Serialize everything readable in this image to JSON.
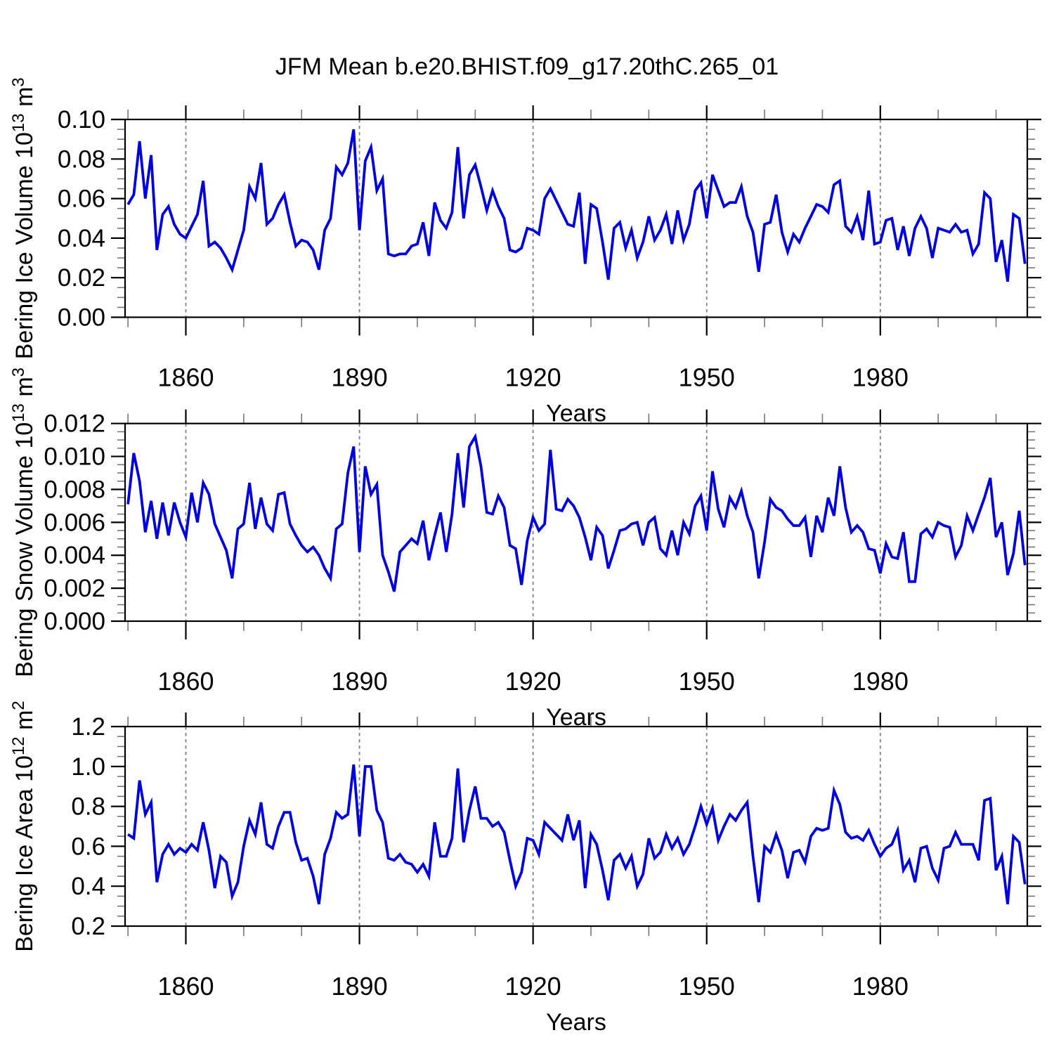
{
  "figure": {
    "title": "JFM Mean b.e20.BHIST.f09_g17.20thC.265_01",
    "background": "#ffffff",
    "line_color": "#0000dd",
    "grid_color": "#808080",
    "axis_color": "#000000",
    "minor_tick_color": "#777777",
    "text_color": "#000000"
  },
  "chart_data": [
    {
      "type": "line",
      "id": "bering-ice-volume",
      "ylabel_segments": [
        {
          "t": "Bering Ice Volume 10"
        },
        {
          "t": "13",
          "sup": true
        },
        {
          "t": " m"
        },
        {
          "t": "3",
          "sup": true
        }
      ],
      "xlabel": "Years",
      "x": {
        "start": 1850,
        "end": 2005,
        "step": 1
      },
      "xlim": [
        1849.5,
        2005.4
      ],
      "ylim": [
        0.0,
        0.1
      ],
      "yticks": [
        0.0,
        0.02,
        0.04,
        0.06,
        0.08,
        0.1
      ],
      "ytick_labels": [
        "0.00",
        "0.02",
        "0.04",
        "0.06",
        "0.08",
        "0.10"
      ],
      "yminor_step": 0.005,
      "xticks": [
        1860,
        1890,
        1920,
        1950,
        1980
      ],
      "xtick_labels": [
        "1860",
        "1890",
        "1920",
        "1950",
        "1980"
      ],
      "xminor_ticks": [
        1850,
        1870,
        1880,
        1900,
        1910,
        1930,
        1940,
        1960,
        1970,
        1990,
        2000
      ],
      "grid_x": [
        1860,
        1890,
        1920,
        1950,
        1980
      ],
      "grid_on": true,
      "legend": "none",
      "values": [
        0.057,
        0.062,
        0.089,
        0.06,
        0.082,
        0.034,
        0.052,
        0.056,
        0.047,
        0.042,
        0.04,
        0.046,
        0.052,
        0.069,
        0.036,
        0.038,
        0.035,
        0.03,
        0.024,
        0.034,
        0.044,
        0.066,
        0.06,
        0.078,
        0.047,
        0.05,
        0.057,
        0.062,
        0.048,
        0.036,
        0.039,
        0.038,
        0.034,
        0.024,
        0.044,
        0.05,
        0.076,
        0.072,
        0.078,
        0.095,
        0.044,
        0.079,
        0.086,
        0.064,
        0.07,
        0.032,
        0.031,
        0.032,
        0.032,
        0.036,
        0.037,
        0.048,
        0.031,
        0.058,
        0.049,
        0.045,
        0.053,
        0.086,
        0.05,
        0.072,
        0.077,
        0.066,
        0.054,
        0.064,
        0.056,
        0.05,
        0.034,
        0.033,
        0.035,
        0.045,
        0.044,
        0.042,
        0.06,
        0.065,
        0.059,
        0.053,
        0.047,
        0.046,
        0.063,
        0.027,
        0.057,
        0.055,
        0.038,
        0.019,
        0.045,
        0.048,
        0.035,
        0.044,
        0.03,
        0.038,
        0.051,
        0.039,
        0.044,
        0.052,
        0.037,
        0.054,
        0.039,
        0.047,
        0.064,
        0.068,
        0.05,
        0.072,
        0.064,
        0.056,
        0.058,
        0.058,
        0.066,
        0.051,
        0.043,
        0.023,
        0.047,
        0.048,
        0.062,
        0.043,
        0.033,
        0.042,
        0.038,
        0.045,
        0.051,
        0.057,
        0.056,
        0.053,
        0.067,
        0.069,
        0.046,
        0.043,
        0.051,
        0.039,
        0.064,
        0.037,
        0.038,
        0.049,
        0.05,
        0.034,
        0.046,
        0.031,
        0.045,
        0.051,
        0.045,
        0.03,
        0.045,
        0.044,
        0.043,
        0.047,
        0.043,
        0.044,
        0.032,
        0.037,
        0.063,
        0.06,
        0.028,
        0.039,
        0.018,
        0.052,
        0.05,
        0.027
      ]
    },
    {
      "type": "line",
      "id": "bering-snow-volume",
      "ylabel_segments": [
        {
          "t": "Bering Snow Volume 10"
        },
        {
          "t": "13",
          "sup": true
        },
        {
          "t": " m"
        },
        {
          "t": "3",
          "sup": true
        }
      ],
      "xlabel": "Years",
      "x": {
        "start": 1850,
        "end": 2005,
        "step": 1
      },
      "xlim": [
        1849.5,
        2005.4
      ],
      "ylim": [
        0.0,
        0.012
      ],
      "yticks": [
        0.0,
        0.002,
        0.004,
        0.006,
        0.008,
        0.01,
        0.012
      ],
      "ytick_labels": [
        "0.000",
        "0.002",
        "0.004",
        "0.006",
        "0.008",
        "0.010",
        "0.012"
      ],
      "yminor_step": 0.0005,
      "xticks": [
        1860,
        1890,
        1920,
        1950,
        1980
      ],
      "xtick_labels": [
        "1860",
        "1890",
        "1920",
        "1950",
        "1980"
      ],
      "xminor_ticks": [
        1850,
        1870,
        1880,
        1900,
        1910,
        1930,
        1940,
        1960,
        1970,
        1990,
        2000
      ],
      "grid_x": [
        1860,
        1890,
        1920,
        1950,
        1980
      ],
      "grid_on": true,
      "legend": "none",
      "values": [
        0.0071,
        0.0102,
        0.0085,
        0.0054,
        0.0073,
        0.005,
        0.0072,
        0.0052,
        0.0072,
        0.006,
        0.0051,
        0.0078,
        0.006,
        0.0084,
        0.0077,
        0.0059,
        0.0051,
        0.0043,
        0.0026,
        0.0056,
        0.0059,
        0.0084,
        0.0056,
        0.0075,
        0.0059,
        0.0055,
        0.0077,
        0.0078,
        0.0059,
        0.0052,
        0.0046,
        0.0042,
        0.0045,
        0.004,
        0.0032,
        0.0026,
        0.0056,
        0.0059,
        0.009,
        0.0106,
        0.0042,
        0.0094,
        0.0077,
        0.0083,
        0.004,
        0.003,
        0.0018,
        0.0042,
        0.0046,
        0.005,
        0.0047,
        0.0061,
        0.0037,
        0.0052,
        0.0066,
        0.0042,
        0.0065,
        0.0102,
        0.0069,
        0.0106,
        0.0112,
        0.0094,
        0.0066,
        0.0065,
        0.0076,
        0.0069,
        0.0046,
        0.0044,
        0.0022,
        0.0049,
        0.0063,
        0.0055,
        0.0059,
        0.0104,
        0.0068,
        0.0067,
        0.0074,
        0.007,
        0.0063,
        0.0051,
        0.0037,
        0.0057,
        0.0052,
        0.0032,
        0.0043,
        0.0055,
        0.0056,
        0.0059,
        0.006,
        0.0046,
        0.006,
        0.0063,
        0.0044,
        0.004,
        0.0055,
        0.004,
        0.006,
        0.0053,
        0.007,
        0.0076,
        0.0055,
        0.0091,
        0.0068,
        0.0057,
        0.0075,
        0.0069,
        0.0079,
        0.0064,
        0.0054,
        0.0026,
        0.0048,
        0.0074,
        0.0069,
        0.0067,
        0.0062,
        0.0058,
        0.0058,
        0.0063,
        0.0039,
        0.0064,
        0.0054,
        0.0075,
        0.0064,
        0.0094,
        0.0069,
        0.0054,
        0.0058,
        0.0054,
        0.0044,
        0.0043,
        0.0029,
        0.0047,
        0.0039,
        0.0038,
        0.0054,
        0.0024,
        0.0024,
        0.0053,
        0.0056,
        0.0051,
        0.006,
        0.0058,
        0.0057,
        0.0039,
        0.0046,
        0.0064,
        0.0055,
        0.0065,
        0.0075,
        0.0087,
        0.0051,
        0.006,
        0.0028,
        0.0041,
        0.0067,
        0.0034
      ]
    },
    {
      "type": "line",
      "id": "bering-ice-area",
      "ylabel_segments": [
        {
          "t": "Bering Ice Area 10"
        },
        {
          "t": "12",
          "sup": true
        },
        {
          "t": " m"
        },
        {
          "t": "2",
          "sup": true
        }
      ],
      "xlabel": "Years",
      "x": {
        "start": 1850,
        "end": 2005,
        "step": 1
      },
      "xlim": [
        1849.5,
        2005.4
      ],
      "ylim": [
        0.2,
        1.2
      ],
      "yticks": [
        0.2,
        0.4,
        0.6,
        0.8,
        1.0,
        1.2
      ],
      "ytick_labels": [
        "0.2",
        "0.4",
        "0.6",
        "0.8",
        "1.0",
        "1.2"
      ],
      "yminor_step": 0.05,
      "xticks": [
        1860,
        1890,
        1920,
        1950,
        1980
      ],
      "xtick_labels": [
        "1860",
        "1890",
        "1920",
        "1950",
        "1980"
      ],
      "xminor_ticks": [
        1850,
        1870,
        1880,
        1900,
        1910,
        1930,
        1940,
        1960,
        1970,
        1990,
        2000
      ],
      "grid_x": [
        1860,
        1890,
        1920,
        1950,
        1980
      ],
      "grid_on": true,
      "legend": "none",
      "values": [
        0.66,
        0.64,
        0.93,
        0.76,
        0.82,
        0.42,
        0.56,
        0.61,
        0.56,
        0.59,
        0.57,
        0.61,
        0.58,
        0.72,
        0.58,
        0.39,
        0.55,
        0.52,
        0.35,
        0.42,
        0.6,
        0.73,
        0.66,
        0.82,
        0.61,
        0.59,
        0.7,
        0.77,
        0.77,
        0.62,
        0.53,
        0.54,
        0.45,
        0.31,
        0.56,
        0.64,
        0.77,
        0.74,
        0.76,
        1.01,
        0.65,
        1.0,
        1.0,
        0.78,
        0.72,
        0.54,
        0.53,
        0.56,
        0.52,
        0.51,
        0.47,
        0.51,
        0.45,
        0.72,
        0.55,
        0.55,
        0.64,
        0.99,
        0.62,
        0.78,
        0.9,
        0.74,
        0.74,
        0.7,
        0.72,
        0.67,
        0.53,
        0.4,
        0.47,
        0.64,
        0.63,
        0.56,
        0.72,
        0.69,
        0.66,
        0.63,
        0.76,
        0.63,
        0.73,
        0.39,
        0.66,
        0.61,
        0.48,
        0.33,
        0.53,
        0.56,
        0.49,
        0.55,
        0.4,
        0.46,
        0.64,
        0.54,
        0.57,
        0.66,
        0.59,
        0.64,
        0.56,
        0.61,
        0.7,
        0.8,
        0.71,
        0.79,
        0.63,
        0.7,
        0.76,
        0.73,
        0.78,
        0.82,
        0.55,
        0.32,
        0.6,
        0.57,
        0.66,
        0.58,
        0.44,
        0.57,
        0.58,
        0.52,
        0.65,
        0.69,
        0.68,
        0.69,
        0.88,
        0.81,
        0.67,
        0.64,
        0.65,
        0.63,
        0.68,
        0.61,
        0.55,
        0.59,
        0.61,
        0.68,
        0.48,
        0.53,
        0.42,
        0.59,
        0.6,
        0.49,
        0.43,
        0.59,
        0.6,
        0.67,
        0.61,
        0.61,
        0.61,
        0.53,
        0.83,
        0.84,
        0.48,
        0.55,
        0.31,
        0.65,
        0.62,
        0.41
      ]
    }
  ]
}
